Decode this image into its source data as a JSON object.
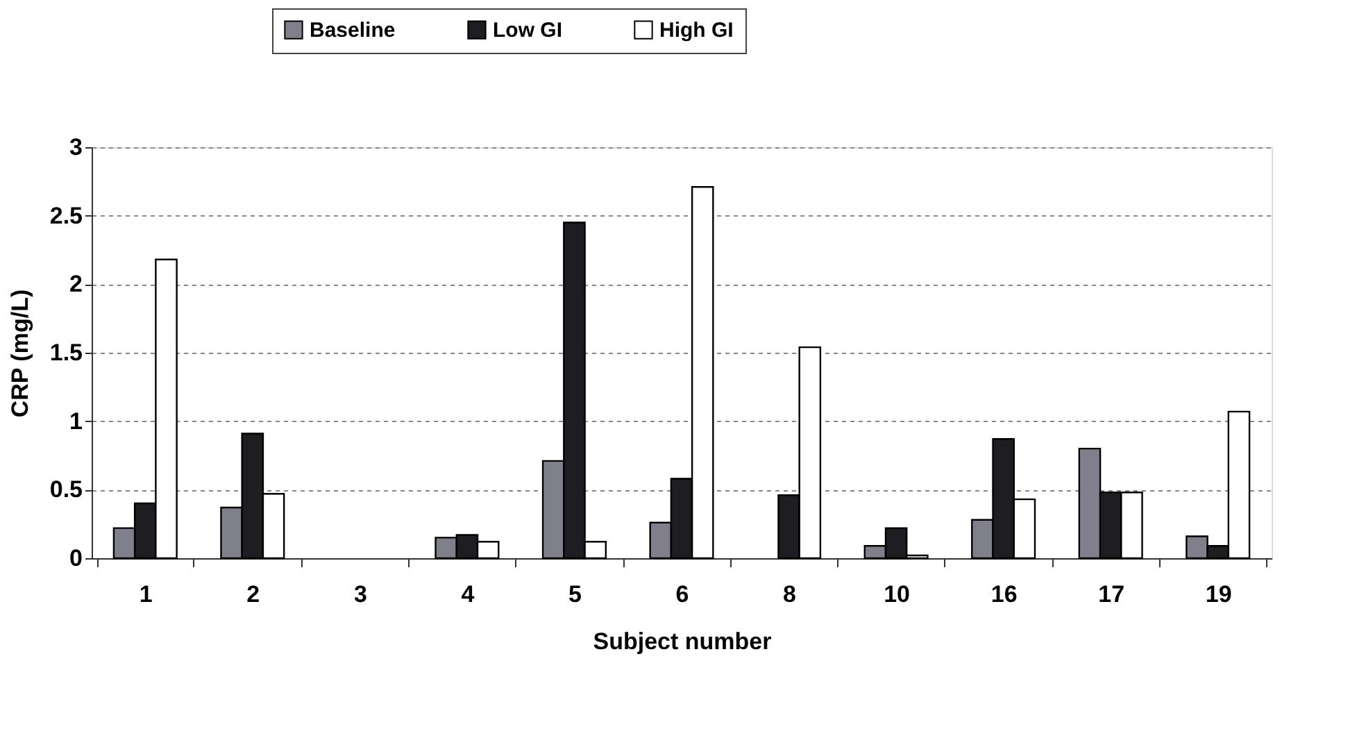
{
  "chart_data": {
    "type": "bar",
    "xlabel": "Subject number",
    "ylabel": "CRP (mg/L)",
    "categories": [
      "1",
      "2",
      "3",
      "4",
      "5",
      "6",
      "8",
      "10",
      "16",
      "17",
      "19"
    ],
    "series": [
      {
        "name": "Baseline",
        "color": "#80808c",
        "values": [
          0.22,
          0.37,
          null,
          0.15,
          0.71,
          0.26,
          null,
          0.09,
          0.28,
          0.8,
          0.16
        ]
      },
      {
        "name": "Low GI",
        "color": "#1e1e22",
        "values": [
          0.4,
          0.91,
          null,
          0.17,
          2.45,
          0.58,
          0.46,
          0.22,
          0.87,
          0.48,
          0.09
        ]
      },
      {
        "name": "High GI",
        "color": "#ffffff",
        "values": [
          2.18,
          0.47,
          null,
          0.12,
          0.12,
          2.71,
          1.54,
          0.02,
          0.43,
          0.48,
          1.07
        ]
      }
    ],
    "ylim": [
      0,
      3
    ],
    "yticks": [
      0,
      0.5,
      1,
      1.5,
      2,
      2.5,
      3
    ],
    "grid": "y",
    "legend": "top"
  }
}
